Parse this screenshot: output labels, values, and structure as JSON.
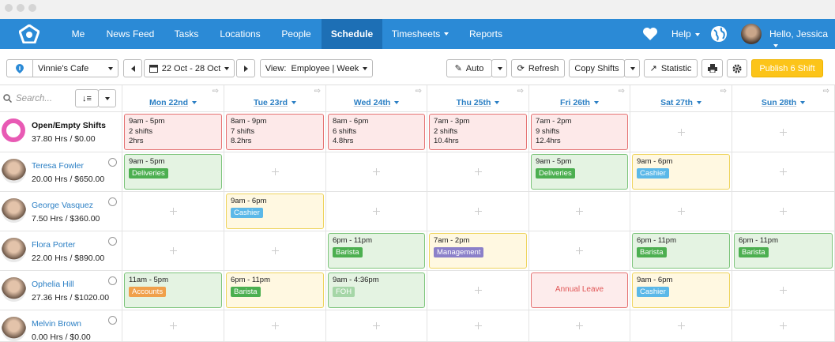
{
  "nav": {
    "items": [
      {
        "label": "Me"
      },
      {
        "label": "News Feed"
      },
      {
        "label": "Tasks"
      },
      {
        "label": "Locations"
      },
      {
        "label": "People"
      },
      {
        "label": "Schedule",
        "active": true
      },
      {
        "label": "Timesheets",
        "dropdown": true
      },
      {
        "label": "Reports"
      }
    ],
    "help": "Help",
    "greeting": "Hello, Jessica"
  },
  "toolbar": {
    "location": "Vinnie's Cafe",
    "date_range": "22 Oct - 28 Oct",
    "view": "View:  Employee | Week",
    "buttons": [
      "Auto",
      "Refresh",
      "Copy Shifts",
      "Statistic"
    ],
    "publish": "Publish 6 Shift"
  },
  "grid": {
    "search_placeholder": "Search...",
    "days": [
      "Mon 22nd",
      "Tue 23rd",
      "Wed 24th",
      "Thu 25th",
      "Fri 26th",
      "Sat 27th",
      "Sun 28th"
    ],
    "rows": [
      {
        "name": "Open/Empty Shifts",
        "hours": "37.80 Hrs / $0.00",
        "open": true,
        "cells": [
          {
            "time": "9am - 5pm",
            "details": [
              "2 shifts",
              "2hrs"
            ],
            "kind": "open"
          },
          {
            "time": "8am - 9pm",
            "details": [
              "7 shifts",
              "8.2hrs"
            ],
            "kind": "open"
          },
          {
            "time": "8am - 6pm",
            "details": [
              "6 shifts",
              "4.8hrs"
            ],
            "kind": "open"
          },
          {
            "time": "7am - 3pm",
            "details": [
              "2 shifts",
              "10.4hrs"
            ],
            "kind": "open"
          },
          {
            "time": "7am - 2pm",
            "details": [
              "9 shifts",
              "12.4hrs"
            ],
            "kind": "open"
          },
          null,
          null
        ]
      },
      {
        "name": "Teresa Fowler",
        "hours": "20.00 Hrs / $650.00",
        "cells": [
          {
            "time": "9am - 5pm",
            "tag": "Deliveries",
            "tag_color": "#4caf50",
            "kind": "green"
          },
          null,
          null,
          null,
          {
            "time": "9am - 5pm",
            "tag": "Deliveries",
            "tag_color": "#4caf50",
            "kind": "green"
          },
          {
            "time": "9am - 6pm",
            "tag": "Cashier",
            "tag_color": "#5bb8e8",
            "kind": "yellow"
          },
          null
        ]
      },
      {
        "name": "George Vasquez",
        "hours": "7.50 Hrs / $360.00",
        "cells": [
          null,
          {
            "time": "9am - 6pm",
            "tag": "Cashier",
            "tag_color": "#5bb8e8",
            "kind": "yellow"
          },
          null,
          null,
          null,
          null,
          null
        ]
      },
      {
        "name": "Flora Porter",
        "hours": "22.00 Hrs / $890.00",
        "cells": [
          null,
          null,
          {
            "time": "6pm - 11pm",
            "tag": "Barista",
            "tag_color": "#4caf50",
            "kind": "green"
          },
          {
            "time": "7am - 2pm",
            "tag": "Management",
            "tag_color": "#8b80c9",
            "kind": "yellow"
          },
          null,
          {
            "time": "6pm - 11pm",
            "tag": "Barista",
            "tag_color": "#4caf50",
            "kind": "green"
          },
          {
            "time": "6pm - 11pm",
            "tag": "Barista",
            "tag_color": "#4caf50",
            "kind": "green"
          }
        ]
      },
      {
        "name": "Ophelia Hill",
        "hours": "27.36 Hrs / $1020.00",
        "cells": [
          {
            "time": "11am - 5pm",
            "tag": "Accounts",
            "tag_color": "#f0a04b",
            "kind": "green"
          },
          {
            "time": "6pm - 11pm",
            "tag": "Barista",
            "tag_color": "#4caf50",
            "kind": "yellow"
          },
          {
            "time": "9am - 4:36pm",
            "tag": "FOH",
            "tag_color": "#a5d6a7",
            "kind": "green"
          },
          null,
          {
            "label": "Annual Leave",
            "kind": "leave"
          },
          {
            "time": "9am - 6pm",
            "tag": "Cashier",
            "tag_color": "#5bb8e8",
            "kind": "yellow"
          },
          null
        ]
      },
      {
        "name": "Melvin Brown",
        "hours": "0.00 Hrs / $0.00",
        "cells": [
          null,
          null,
          null,
          null,
          null,
          null,
          null
        ]
      }
    ]
  }
}
